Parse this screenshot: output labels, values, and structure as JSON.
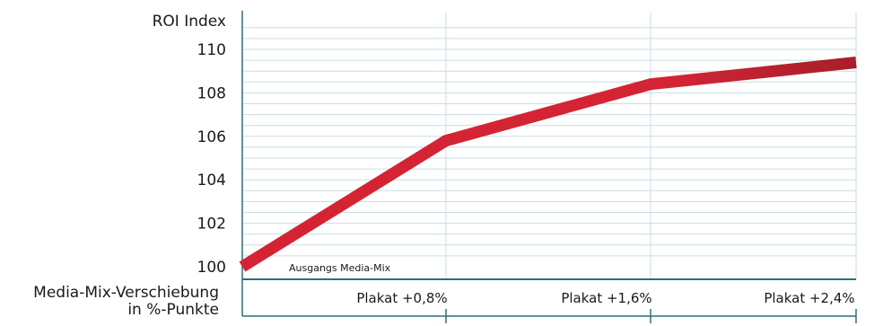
{
  "chart_data": {
    "type": "line",
    "ylabel": "ROI Index",
    "xlabel": "Media-Mix-Verschiebung in %-Punkte",
    "xlabel_lines": [
      "Media-Mix-Verschiebung",
      "in %-Punkte"
    ],
    "categories": [
      "Ausgangs Media-Mix",
      "Plakat +0,8%",
      "Plakat +1,6%",
      "Plakat +2,4%"
    ],
    "values": [
      100,
      105.8,
      108.4,
      109.4
    ],
    "ylim": [
      100,
      110
    ],
    "yticks": [
      "110",
      "108",
      "106",
      "104",
      "102",
      "100"
    ],
    "grid": true,
    "series_color": "#d42434",
    "series_color_end": "#a51f2a",
    "axis_color": "#2d6f7c",
    "grid_color": "#c9dde3"
  }
}
